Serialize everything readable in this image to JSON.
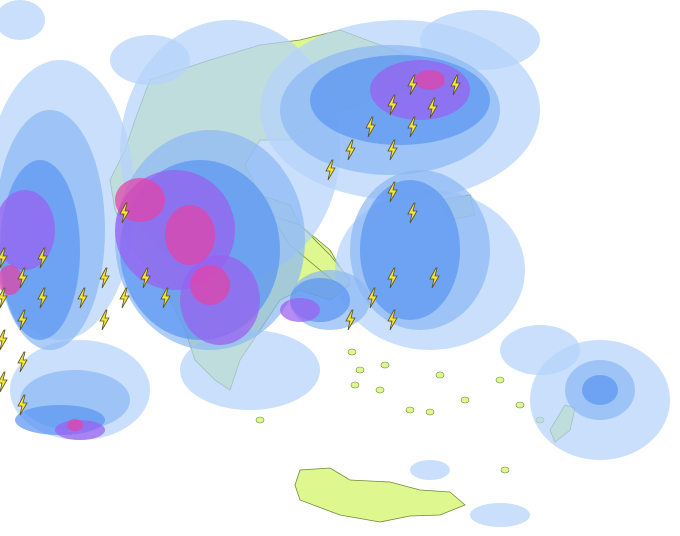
{
  "map": {
    "background_color": "#ffffff",
    "land_color": "#dff78f",
    "land_outline_color": "#6f8a3a",
    "precipitation_levels": [
      {
        "level": "light",
        "color": "#b4d3fb"
      },
      {
        "level": "moderate",
        "color": "#8db8f4"
      },
      {
        "level": "heavy",
        "color": "#5b95f1"
      },
      {
        "level": "very-heavy",
        "color": "#9a5ff0"
      },
      {
        "level": "extreme",
        "color": "#e343a6"
      }
    ],
    "marker_icon": "lightning-icon",
    "marker_color": "#f7e63a"
  }
}
